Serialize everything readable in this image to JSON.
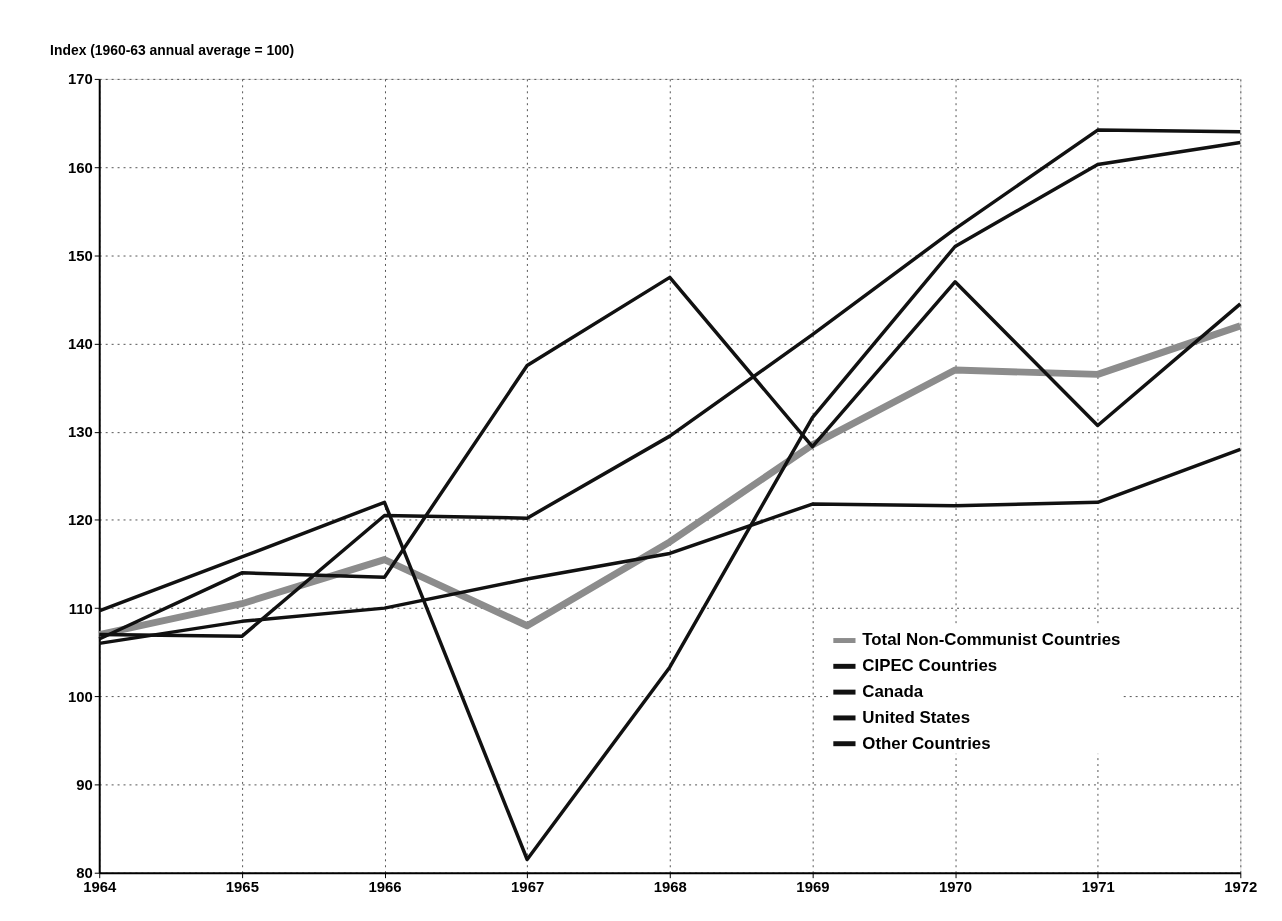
{
  "chart_data": {
    "type": "line",
    "ylabel": "Index (1960-63 annual average = 100)",
    "x": [
      1964,
      1965,
      1966,
      1967,
      1968,
      1969,
      1970,
      1971,
      1972
    ],
    "series": [
      {
        "name": "Total Non-Communist Countries",
        "color": "#8c8c8c",
        "values": [
          107,
          110.5,
          115.5,
          108,
          117.5,
          128.5,
          137,
          136.5,
          142
        ]
      },
      {
        "name": "CIPEC Countries",
        "color": "#111111",
        "values": [
          106,
          108.5,
          110,
          113.3,
          116.2,
          121.8,
          121.6,
          122,
          128
        ]
      },
      {
        "name": "Canada",
        "color": "#111111",
        "values": [
          106.5,
          114,
          113.5,
          137.5,
          147.5,
          128.3,
          147,
          130.7,
          144.5
        ]
      },
      {
        "name": "United States",
        "color": "#111111",
        "values": [
          109.7,
          115.8,
          122,
          81.5,
          103.3,
          131.6,
          151,
          160.3,
          162.8
        ]
      },
      {
        "name": "Other Countries",
        "color": "#111111",
        "values": [
          107,
          106.8,
          120.5,
          120.2,
          129.5,
          141,
          153,
          164.2,
          164
        ]
      }
    ],
    "xlim": [
      1964,
      1972
    ],
    "xticks": [
      1964,
      1965,
      1966,
      1967,
      1968,
      1969,
      1970,
      1971,
      1972
    ],
    "ylim": [
      80,
      170
    ],
    "yticks": [
      80,
      90,
      100,
      110,
      120,
      130,
      140,
      150,
      160,
      170
    ],
    "grid": true,
    "legend": "bottom right",
    "marker": "none",
    "line_style": "solid"
  }
}
